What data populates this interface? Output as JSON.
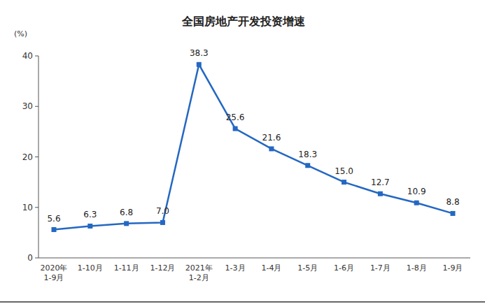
{
  "chart_data": {
    "type": "line",
    "title": "全国房地产开发投资增速",
    "y_label": "(%)",
    "categories": [
      "2020年\n1-9月",
      "1-10月",
      "1-11月",
      "1-12月",
      "2021年\n1-2月",
      "1-3月",
      "1-4月",
      "1-5月",
      "1-6月",
      "1-7月",
      "1-8月",
      "1-9月"
    ],
    "values": [
      5.6,
      6.3,
      6.8,
      7.0,
      38.3,
      25.6,
      21.6,
      18.3,
      15.0,
      12.7,
      10.9,
      8.8
    ],
    "value_labels": [
      "5.6",
      "6.3",
      "6.8",
      "7.0",
      "38.3",
      "25.6",
      "21.6",
      "18.3",
      "15.0",
      "12.7",
      "10.9",
      "8.8"
    ],
    "color": "#2468c2",
    "marker": "square",
    "data_labels": true,
    "grid": false,
    "ylim": [
      0,
      40
    ],
    "yticks": [
      0,
      10,
      20,
      30,
      40
    ]
  }
}
